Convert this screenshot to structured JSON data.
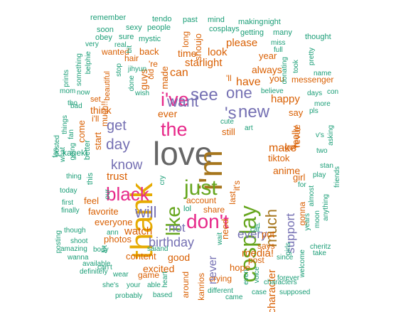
{
  "palette": {
    "green": "#1b9e77",
    "orange": "#d95f02",
    "purple": "#7570b3",
    "magenta": "#e7298a",
    "olive": "#66a61e",
    "gold": "#e6ab02",
    "brown": "#a6761d",
    "gray": "#666666"
  },
  "words": [
    {
      "t": "love",
      "c": "gray"
    },
    {
      "t": "thank",
      "c": "gold"
    },
    {
      "t": "i'm",
      "c": "brown"
    },
    {
      "t": "cosplay",
      "c": "olive"
    },
    {
      "t": "just",
      "c": "olive"
    },
    {
      "t": "like",
      "c": "olive"
    },
    {
      "t": "don't",
      "c": "magenta"
    },
    {
      "t": "black",
      "c": "magenta"
    },
    {
      "t": "i've",
      "c": "magenta"
    },
    {
      "t": "the",
      "c": "magenta"
    },
    {
      "t": "see",
      "c": "purple"
    },
    {
      "t": "new",
      "c": "purple"
    },
    {
      "t": "one",
      "c": "purple"
    },
    {
      "t": "want",
      "c": "purple"
    },
    {
      "t": "will",
      "c": "purple"
    },
    {
      "t": "much",
      "c": "brown"
    },
    {
      "t": "get",
      "c": "purple"
    },
    {
      "t": "'s",
      "c": "purple"
    },
    {
      "t": "day",
      "c": "purple"
    },
    {
      "t": "know",
      "c": "purple"
    },
    {
      "t": "birthday",
      "c": "purple"
    },
    {
      "t": "not",
      "c": "purple"
    },
    {
      "t": "never",
      "c": "purple"
    },
    {
      "t": "support",
      "c": "purple"
    },
    {
      "t": "every",
      "c": "purple"
    },
    {
      "t": "watch",
      "c": "orange"
    },
    {
      "t": "make",
      "c": "orange"
    },
    {
      "t": "character",
      "c": "orange"
    },
    {
      "t": "media!",
      "c": "orange"
    },
    {
      "t": "can",
      "c": "orange"
    },
    {
      "t": "starlight",
      "c": "orange"
    },
    {
      "t": "have",
      "c": "orange"
    },
    {
      "t": "trust",
      "c": "orange"
    },
    {
      "t": "ever",
      "c": "orange"
    },
    {
      "t": "anime",
      "c": "orange"
    },
    {
      "t": "happy",
      "c": "orange"
    },
    {
      "t": "look",
      "c": "orange"
    },
    {
      "t": "good",
      "c": "orange"
    },
    {
      "t": "excited",
      "c": "orange"
    },
    {
      "t": "content",
      "c": "orange"
    },
    {
      "t": "always",
      "c": "orange"
    },
    {
      "t": "please",
      "c": "orange"
    },
    {
      "t": "think",
      "c": "orange"
    },
    {
      "t": "hope",
      "c": "orange"
    },
    {
      "t": "favorite",
      "c": "orange"
    },
    {
      "t": "everyone",
      "c": "orange"
    },
    {
      "t": "photos",
      "c": "orange"
    },
    {
      "t": "need",
      "c": "orange"
    },
    {
      "t": "really",
      "c": "orange"
    },
    {
      "t": "revue",
      "c": "orange"
    },
    {
      "t": "girl",
      "c": "orange"
    },
    {
      "t": "guys",
      "c": "orange"
    },
    {
      "t": "you",
      "c": "orange"
    },
    {
      "t": "time",
      "c": "orange"
    },
    {
      "t": "made",
      "c": "orange"
    },
    {
      "t": "back",
      "c": "orange"
    },
    {
      "t": "year",
      "c": "orange"
    },
    {
      "t": "tiktok",
      "c": "orange"
    },
    {
      "t": "say",
      "c": "orange"
    },
    {
      "t": "shoujo",
      "c": "orange"
    },
    {
      "t": "still",
      "c": "orange"
    },
    {
      "t": "much!!",
      "c": "orange"
    },
    {
      "t": "feel",
      "c": "orange"
    },
    {
      "t": "come",
      "c": "orange"
    },
    {
      "t": "start",
      "c": "orange"
    },
    {
      "t": "i'll",
      "c": "orange"
    },
    {
      "t": "set",
      "c": "orange"
    },
    {
      "t": "put",
      "c": "orange"
    },
    {
      "t": "hair",
      "c": "orange"
    },
    {
      "t": "'re",
      "c": "orange"
    },
    {
      "t": "crying",
      "c": "orange"
    },
    {
      "t": "messenger",
      "c": "orange"
    },
    {
      "t": "'ll",
      "c": "orange"
    },
    {
      "t": "kageki",
      "c": "green"
    },
    {
      "t": "this",
      "c": "green"
    },
    {
      "t": "better",
      "c": "green"
    },
    {
      "t": "around",
      "c": "orange"
    },
    {
      "t": "kanrios",
      "c": "orange"
    },
    {
      "t": "game",
      "c": "orange"
    },
    {
      "t": "gonna",
      "c": "orange"
    },
    {
      "t": "says",
      "c": "orange"
    },
    {
      "t": "post",
      "c": "orange"
    },
    {
      "t": "share",
      "c": "orange"
    },
    {
      "t": "account",
      "c": "orange"
    },
    {
      "t": "last",
      "c": "orange"
    },
    {
      "t": "it's",
      "c": "orange"
    },
    {
      "t": "long",
      "c": "orange"
    },
    {
      "t": "old",
      "c": "orange"
    },
    {
      "t": "wanted",
      "c": "orange"
    },
    {
      "t": "beautiful",
      "c": "orange"
    },
    {
      "t": "got",
      "c": "orange"
    },
    {
      "t": "lol",
      "c": "green"
    },
    {
      "t": "past",
      "c": "green"
    },
    {
      "t": "mind",
      "c": "green"
    },
    {
      "t": "making",
      "c": "green"
    },
    {
      "t": "night",
      "c": "green"
    },
    {
      "t": "remember",
      "c": "green"
    },
    {
      "t": "tendo",
      "c": "green"
    },
    {
      "t": "soon",
      "c": "green"
    },
    {
      "t": "sexy",
      "c": "green"
    },
    {
      "t": "people",
      "c": "green"
    },
    {
      "t": "cosplays",
      "c": "green"
    },
    {
      "t": "obey",
      "c": "green"
    },
    {
      "t": "sure",
      "c": "green"
    },
    {
      "t": "mystic",
      "c": "green"
    },
    {
      "t": "getting",
      "c": "green"
    },
    {
      "t": "many",
      "c": "green"
    },
    {
      "t": "thought",
      "c": "green"
    },
    {
      "t": "very",
      "c": "green"
    },
    {
      "t": "real",
      "c": "green"
    },
    {
      "t": "miss",
      "c": "green"
    },
    {
      "t": "full",
      "c": "green"
    },
    {
      "t": "something",
      "c": "green"
    },
    {
      "t": "belphie",
      "c": "green"
    },
    {
      "t": "stop",
      "c": "green"
    },
    {
      "t": "bit",
      "c": "green"
    },
    {
      "t": "took",
      "c": "green"
    },
    {
      "t": "pretty",
      "c": "green"
    },
    {
      "t": "donating",
      "c": "green"
    },
    {
      "t": "name",
      "c": "green"
    },
    {
      "t": "prints",
      "c": "green"
    },
    {
      "t": "jihyun",
      "c": "green"
    },
    {
      "t": "done",
      "c": "green"
    },
    {
      "t": "believe",
      "c": "green"
    },
    {
      "t": "mom",
      "c": "green"
    },
    {
      "t": "now",
      "c": "green"
    },
    {
      "t": "wish",
      "c": "green"
    },
    {
      "t": "days",
      "c": "green"
    },
    {
      "t": "con",
      "c": "green"
    },
    {
      "t": "bad",
      "c": "green"
    },
    {
      "t": "tho",
      "c": "green"
    },
    {
      "t": "more",
      "c": "green"
    },
    {
      "t": "pls",
      "c": "green"
    },
    {
      "t": "cute",
      "c": "green"
    },
    {
      "t": "art",
      "c": "green"
    },
    {
      "t": "things",
      "c": "green"
    },
    {
      "t": "v's",
      "c": "green"
    },
    {
      "t": "asking",
      "c": "green"
    },
    {
      "t": "fan",
      "c": "green"
    },
    {
      "t": "going",
      "c": "green"
    },
    {
      "t": "posted",
      "c": "green"
    },
    {
      "t": "what",
      "c": "green"
    },
    {
      "t": "two",
      "c": "green"
    },
    {
      "t": "stan",
      "c": "green"
    },
    {
      "t": "thing",
      "c": "green"
    },
    {
      "t": "play",
      "c": "green"
    },
    {
      "t": "today",
      "c": "green"
    },
    {
      "t": "our",
      "c": "green"
    },
    {
      "t": "first",
      "c": "green"
    },
    {
      "t": "finally",
      "c": "green"
    },
    {
      "t": "cry",
      "c": "green"
    },
    {
      "t": "friends",
      "c": "green"
    },
    {
      "t": "for",
      "c": "green"
    },
    {
      "t": "almost",
      "c": "green"
    },
    {
      "t": "anything",
      "c": "green"
    },
    {
      "t": "irl",
      "c": "green"
    },
    {
      "t": "cat",
      "c": "green"
    },
    {
      "t": "moon",
      "c": "green"
    },
    {
      "t": "years",
      "c": "green"
    },
    {
      "t": "wait",
      "c": "green"
    },
    {
      "t": "ann",
      "c": "green"
    },
    {
      "t": "though",
      "c": "green"
    },
    {
      "t": "posting",
      "c": "green"
    },
    {
      "t": "shoot",
      "c": "green"
    },
    {
      "t": "saiand",
      "c": "green"
    },
    {
      "t": "cheritz",
      "c": "green"
    },
    {
      "t": "take",
      "c": "green"
    },
    {
      "t": "body",
      "c": "green"
    },
    {
      "t": "wanna",
      "c": "green"
    },
    {
      "t": "amazing",
      "c": "green"
    },
    {
      "t": "available",
      "c": "green"
    },
    {
      "t": "can't",
      "c": "green"
    },
    {
      "t": "definitely",
      "c": "green"
    },
    {
      "t": "wear",
      "c": "green"
    },
    {
      "t": "girls",
      "c": "green"
    },
    {
      "t": "welcome",
      "c": "green"
    },
    {
      "t": "since",
      "c": "green"
    },
    {
      "t": "she's",
      "c": "green"
    },
    {
      "t": "your",
      "c": "green"
    },
    {
      "t": "able",
      "c": "green"
    },
    {
      "t": "heart",
      "c": "green"
    },
    {
      "t": "different",
      "c": "green"
    },
    {
      "t": "even",
      "c": "green"
    },
    {
      "t": "voice",
      "c": "green"
    },
    {
      "t": "forever",
      "c": "green"
    },
    {
      "t": "characters",
      "c": "green"
    },
    {
      "t": "case",
      "c": "green"
    },
    {
      "t": "supposed",
      "c": "green"
    },
    {
      "t": "probably",
      "c": "green"
    },
    {
      "t": "based",
      "c": "green"
    },
    {
      "t": "came",
      "c": "green"
    },
    {
      "t": "lot",
      "c": "green"
    },
    {
      "t": "fan",
      "c": "green"
    }
  ]
}
